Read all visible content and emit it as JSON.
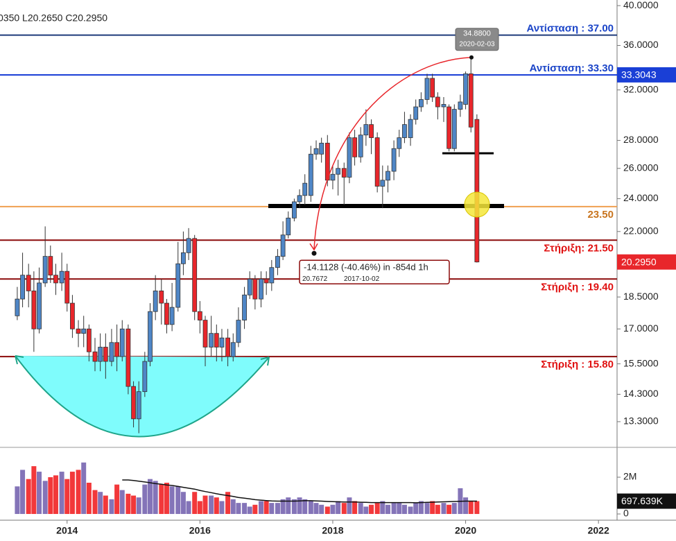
{
  "chart_data": {
    "type": "candlestick",
    "header": "0350  L20.2650  C20.2950",
    "log_scale": true,
    "grid": false,
    "up_color": "#4f86c6",
    "down_color": "#e8262b",
    "volume_up_color": "#8474b8",
    "volume_down_color": "#f2383a",
    "ma_color": "#111111",
    "xlim": [
      2012.99,
      2022.28
    ],
    "xticks": [
      2014,
      2016,
      2018,
      2020,
      2022
    ],
    "ylim": [
      12.54,
      40.6
    ],
    "yticks": [
      {
        "value": 13.3,
        "label": "13.3000"
      },
      {
        "value": 14.3,
        "label": "14.3000"
      },
      {
        "value": 15.5,
        "label": "15.5000"
      },
      {
        "value": 17,
        "label": "17.0000"
      },
      {
        "value": 18.5,
        "label": "18.5000"
      },
      {
        "value": 22,
        "label": "22.0000"
      },
      {
        "value": 24,
        "label": "24.0000"
      },
      {
        "value": 26,
        "label": "26.0000"
      },
      {
        "value": 28,
        "label": "28.0000"
      },
      {
        "value": 32,
        "label": "32.0000"
      },
      {
        "value": 36,
        "label": "36.0000"
      },
      {
        "value": 40,
        "label": "40.0000"
      }
    ],
    "x": [
      2013.25,
      2013.33,
      2013.42,
      2013.5,
      2013.58,
      2013.67,
      2013.75,
      2013.83,
      2013.92,
      2014,
      2014.08,
      2014.17,
      2014.25,
      2014.33,
      2014.42,
      2014.5,
      2014.58,
      2014.67,
      2014.75,
      2014.83,
      2014.92,
      2015,
      2015.08,
      2015.17,
      2015.25,
      2015.33,
      2015.42,
      2015.5,
      2015.58,
      2015.67,
      2015.75,
      2015.83,
      2015.92,
      2016,
      2016.08,
      2016.17,
      2016.25,
      2016.33,
      2016.42,
      2016.5,
      2016.58,
      2016.67,
      2016.75,
      2016.83,
      2016.92,
      2017,
      2017.08,
      2017.17,
      2017.25,
      2017.33,
      2017.42,
      2017.5,
      2017.58,
      2017.67,
      2017.75,
      2017.83,
      2017.92,
      2018,
      2018.08,
      2018.17,
      2018.25,
      2018.33,
      2018.42,
      2018.5,
      2018.58,
      2018.67,
      2018.75,
      2018.83,
      2018.92,
      2019,
      2019.08,
      2019.17,
      2019.25,
      2019.33,
      2019.42,
      2019.5,
      2019.58,
      2019.67,
      2019.75,
      2019.83,
      2019.92,
      2020,
      2020.08,
      2020.17
    ],
    "open": [
      17.6,
      18.4,
      19.6,
      18.8,
      17.0,
      19.2,
      20.6,
      19.6,
      19.2,
      19.8,
      18.2,
      17.0,
      16.8,
      17.0,
      16.0,
      15.6,
      16.2,
      15.6,
      16.4,
      15.8,
      17.0,
      14.6,
      13.4,
      14.4,
      15.6,
      17.8,
      18.8,
      18.2,
      17.2,
      18.0,
      20.2,
      20.8,
      21.6,
      17.8,
      17.4,
      16.2,
      16.8,
      16.2,
      16.6,
      15.8,
      16.4,
      17.4,
      18.6,
      19.4,
      18.4,
      19.4,
      19.2,
      20.0,
      20.6,
      21.8,
      22.8,
      23.8,
      24.2,
      24.2,
      27.0,
      27.0,
      27.8,
      25.2,
      25.6,
      26.0,
      25.4,
      28.2,
      26.8,
      28.4,
      29.2,
      28.2,
      24.8,
      25.2,
      25.8,
      27.4,
      28.2,
      28.2,
      29.6,
      30.6,
      31.2,
      33.0,
      31.4,
      30.6,
      30.6,
      27.4,
      30.4,
      30.8,
      33.4,
      29.6
    ],
    "high": [
      19.0,
      20.8,
      20.2,
      19.8,
      20.0,
      22.3,
      21.2,
      20.2,
      20.8,
      20.2,
      18.6,
      17.4,
      17.6,
      17.2,
      16.6,
      16.8,
      16.8,
      17.0,
      17.2,
      17.4,
      17.2,
      14.8,
      14.8,
      16.0,
      18.2,
      19.6,
      19.4,
      18.4,
      19.2,
      21.4,
      22.0,
      22.2,
      21.8,
      18.3,
      17.6,
      17.6,
      17.2,
      17.0,
      17.0,
      16.8,
      18.0,
      19.0,
      19.8,
      19.6,
      19.8,
      19.8,
      20.4,
      21.0,
      22.6,
      23.2,
      24.0,
      24.6,
      25.6,
      27.6,
      28.0,
      28.2,
      28.4,
      26.2,
      26.6,
      26.4,
      28.6,
      28.8,
      29.0,
      30.4,
      29.6,
      28.6,
      26.2,
      26.2,
      28.0,
      28.8,
      30.2,
      30.0,
      31.2,
      31.8,
      33.4,
      33.4,
      31.8,
      31.4,
      30.8,
      30.8,
      31.6,
      33.6,
      34.88,
      30.0
    ],
    "low": [
      17.4,
      18.0,
      18.0,
      16.0,
      16.8,
      19.0,
      19.2,
      18.6,
      18.8,
      17.8,
      16.6,
      16.2,
      16.2,
      15.6,
      15.2,
      15.2,
      14.9,
      15.4,
      15.2,
      15.6,
      14.3,
      13.1,
      12.9,
      14.2,
      15.4,
      17.4,
      17.2,
      16.8,
      16.9,
      17.8,
      19.6,
      20.4,
      17.4,
      16.8,
      15.4,
      15.8,
      15.6,
      15.6,
      15.4,
      15.6,
      16.2,
      17.0,
      18.4,
      17.9,
      18.0,
      18.6,
      18.8,
      19.6,
      20.4,
      21.6,
      22.6,
      23.4,
      23.6,
      23.8,
      26.6,
      26.4,
      24.8,
      24.6,
      24.2,
      23.6,
      25.0,
      26.2,
      26.4,
      27.6,
      27.0,
      24.4,
      23.4,
      24.4,
      25.2,
      26.8,
      27.8,
      27.6,
      29.2,
      30.2,
      30.8,
      31.0,
      29.6,
      29.4,
      27.2,
      27.2,
      29.8,
      30.4,
      28.6,
      20.265
    ],
    "close": [
      18.4,
      19.6,
      18.8,
      17.0,
      19.2,
      20.6,
      19.6,
      19.2,
      19.8,
      18.2,
      17.0,
      16.8,
      17.0,
      16.0,
      15.6,
      16.2,
      15.6,
      16.4,
      15.8,
      17.0,
      14.6,
      13.4,
      14.4,
      15.6,
      17.8,
      18.8,
      18.2,
      17.2,
      18.0,
      20.2,
      20.8,
      21.6,
      17.8,
      17.4,
      16.2,
      16.8,
      16.2,
      16.6,
      15.8,
      16.4,
      17.4,
      18.6,
      19.4,
      18.4,
      19.4,
      19.2,
      20.0,
      20.6,
      21.8,
      22.8,
      23.8,
      24.2,
      25.0,
      27.0,
      27.4,
      27.8,
      25.2,
      25.6,
      26.0,
      25.4,
      28.2,
      26.8,
      28.4,
      29.2,
      28.2,
      24.8,
      25.2,
      25.8,
      27.4,
      28.2,
      29.2,
      29.6,
      30.6,
      31.2,
      33.0,
      31.4,
      30.6,
      30.8,
      27.4,
      30.4,
      31.0,
      33.4,
      29.0,
      20.295
    ],
    "levels": [
      {
        "value": 37,
        "label": "Αντίσταση : 37.00",
        "color": "#1e3a7a",
        "label_color": "#1a44c8",
        "label_position": "above"
      },
      {
        "value": 33.3,
        "label": "Αντίσταση: 33.30",
        "color": "#1a3fd6",
        "label_color": "#1a44c8",
        "label_position": "above"
      },
      {
        "value": 23.5,
        "label": "23.50",
        "color": "#f0a050",
        "label_color": "#c8741e",
        "label_position": "below"
      },
      {
        "value": 21.5,
        "label": "Στήριξη: 21.50",
        "color": "#8b0a0a",
        "label_color": "#e01010",
        "label_position": "below"
      },
      {
        "value": 19.4,
        "label": "Στήριξη : 19.40",
        "color": "#8b0a0a",
        "label_color": "#e01010",
        "label_position": "below"
      },
      {
        "value": 15.8,
        "label": "Στήριξη : 15.80",
        "color": "#8b0a0a",
        "label_color": "#e01010",
        "label_position": "below"
      }
    ],
    "price_markers": [
      {
        "value": 33.3043,
        "color": "#1a3fd6"
      },
      {
        "value": 20.295,
        "label": "20.2950",
        "color": "#e8262b"
      }
    ],
    "measure": {
      "peak": {
        "value": 34.88,
        "label": "34.8800"
      },
      "peak_date": "2020-02-03",
      "text": "-14.1128 (-40.46%) in -854d 1h",
      "target": 20.7672,
      "target_date": "2017-10-02"
    },
    "volume": {
      "ylim": [
        -150000,
        3510000
      ],
      "yticks": [
        0,
        {
          "value": 2000000,
          "label": "2M"
        }
      ],
      "values": [
        1500000,
        2400000,
        1900000,
        2600000,
        2300000,
        1800000,
        2000000,
        2100000,
        2300000,
        1900000,
        2300000,
        2400000,
        2800000,
        1700000,
        1300000,
        1200000,
        1000000,
        800000,
        1600000,
        1300000,
        1100000,
        1000000,
        900000,
        1600000,
        1900000,
        1800000,
        1600000,
        1700000,
        1500000,
        1500000,
        1200000,
        700000,
        1200000,
        700000,
        1000000,
        1000000,
        900000,
        700000,
        1200000,
        800000,
        600000,
        600000,
        400000,
        500000,
        700000,
        700000,
        600000,
        600000,
        800000,
        900000,
        800000,
        900000,
        800000,
        700000,
        600000,
        500000,
        400000,
        500000,
        700000,
        600000,
        900000,
        700000,
        600000,
        400000,
        500000,
        600000,
        700000,
        500000,
        600000,
        600000,
        500000,
        400000,
        600000,
        700000,
        600000,
        700000,
        500000,
        600000,
        500000,
        600000,
        1400000,
        900000,
        700000,
        697639
      ],
      "ma": [
        null,
        null,
        null,
        null,
        null,
        null,
        null,
        null,
        null,
        null,
        null,
        null,
        null,
        null,
        null,
        null,
        null,
        null,
        null,
        1850000,
        1850000,
        1820000,
        1780000,
        1740000,
        1700000,
        1650000,
        1620000,
        1580000,
        1550000,
        1500000,
        1450000,
        1400000,
        1350000,
        1280000,
        1220000,
        1160000,
        1100000,
        1050000,
        1000000,
        950000,
        900000,
        860000,
        820000,
        780000,
        750000,
        730000,
        710000,
        700000,
        700000,
        700000,
        700000,
        710000,
        720000,
        720000,
        710000,
        700000,
        680000,
        670000,
        660000,
        650000,
        650000,
        650000,
        640000,
        630000,
        620000,
        620000,
        620000,
        620000,
        620000,
        620000,
        620000,
        620000,
        610000,
        620000,
        630000,
        640000,
        650000,
        660000,
        670000,
        680000,
        690000,
        700000,
        700000,
        700000
      ],
      "last_marker": {
        "value": 697639,
        "label": "697.639K"
      }
    }
  }
}
